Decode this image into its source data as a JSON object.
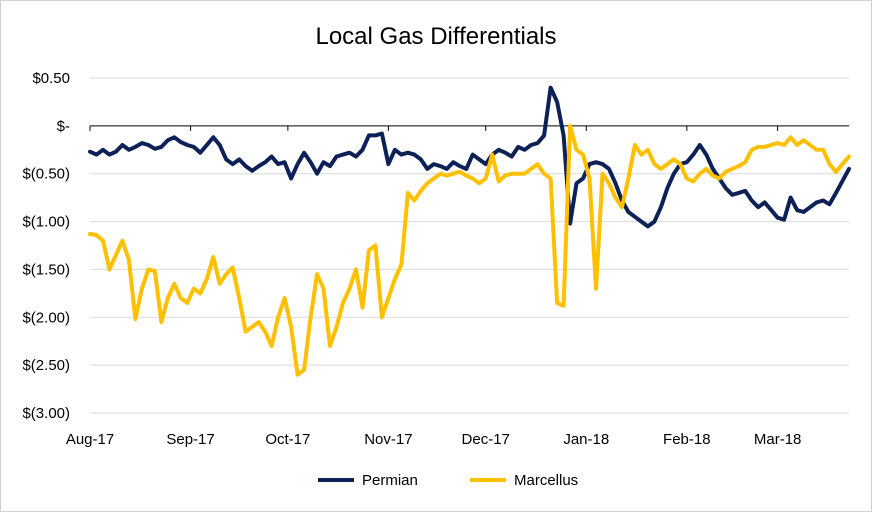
{
  "chart_data": {
    "type": "line",
    "title": "Local Gas Differentials",
    "xlabel": "",
    "ylabel": "",
    "ylim": [
      -3.0,
      0.5
    ],
    "y_ticks": [
      {
        "value": 0.5,
        "label": "$0.50"
      },
      {
        "value": 0.0,
        "label": "$-"
      },
      {
        "value": -0.5,
        "label": "$(0.50)"
      },
      {
        "value": -1.0,
        "label": "$(1.00)"
      },
      {
        "value": -1.5,
        "label": "$(1.50)"
      },
      {
        "value": -2.0,
        "label": "$(2.00)"
      },
      {
        "value": -2.5,
        "label": "$(2.50)"
      },
      {
        "value": -3.0,
        "label": "$(3.00)"
      }
    ],
    "xlim": [
      "2017-08-01",
      "2018-03-23"
    ],
    "x_ticks": [
      {
        "date": "2017-08-01",
        "label": "Aug-17"
      },
      {
        "date": "2017-09-01",
        "label": "Sep-17"
      },
      {
        "date": "2017-10-01",
        "label": "Oct-17"
      },
      {
        "date": "2017-11-01",
        "label": "Nov-17"
      },
      {
        "date": "2017-12-01",
        "label": "Dec-17"
      },
      {
        "date": "2018-01-01",
        "label": "Jan-18"
      },
      {
        "date": "2018-02-01",
        "label": "Feb-18"
      },
      {
        "date": "2018-03-01",
        "label": "Mar-18"
      }
    ],
    "grid": "horizontal",
    "legend_position": "bottom",
    "series": [
      {
        "name": "Permian",
        "color": "#0d2157",
        "points": [
          [
            "2017-08-01",
            -0.27
          ],
          [
            "2017-08-03",
            -0.3
          ],
          [
            "2017-08-05",
            -0.25
          ],
          [
            "2017-08-07",
            -0.3
          ],
          [
            "2017-08-09",
            -0.27
          ],
          [
            "2017-08-11",
            -0.2
          ],
          [
            "2017-08-13",
            -0.25
          ],
          [
            "2017-08-15",
            -0.22
          ],
          [
            "2017-08-17",
            -0.18
          ],
          [
            "2017-08-19",
            -0.2
          ],
          [
            "2017-08-21",
            -0.24
          ],
          [
            "2017-08-23",
            -0.22
          ],
          [
            "2017-08-25",
            -0.15
          ],
          [
            "2017-08-27",
            -0.12
          ],
          [
            "2017-08-29",
            -0.17
          ],
          [
            "2017-08-31",
            -0.2
          ],
          [
            "2017-09-02",
            -0.22
          ],
          [
            "2017-09-04",
            -0.28
          ],
          [
            "2017-09-06",
            -0.2
          ],
          [
            "2017-09-08",
            -0.12
          ],
          [
            "2017-09-10",
            -0.2
          ],
          [
            "2017-09-12",
            -0.35
          ],
          [
            "2017-09-14",
            -0.4
          ],
          [
            "2017-09-16",
            -0.35
          ],
          [
            "2017-09-18",
            -0.42
          ],
          [
            "2017-09-20",
            -0.47
          ],
          [
            "2017-09-22",
            -0.42
          ],
          [
            "2017-09-24",
            -0.38
          ],
          [
            "2017-09-26",
            -0.32
          ],
          [
            "2017-09-28",
            -0.4
          ],
          [
            "2017-09-30",
            -0.38
          ],
          [
            "2017-10-02",
            -0.55
          ],
          [
            "2017-10-04",
            -0.4
          ],
          [
            "2017-10-06",
            -0.28
          ],
          [
            "2017-10-08",
            -0.38
          ],
          [
            "2017-10-10",
            -0.5
          ],
          [
            "2017-10-12",
            -0.38
          ],
          [
            "2017-10-14",
            -0.42
          ],
          [
            "2017-10-16",
            -0.32
          ],
          [
            "2017-10-18",
            -0.3
          ],
          [
            "2017-10-20",
            -0.28
          ],
          [
            "2017-10-22",
            -0.32
          ],
          [
            "2017-10-24",
            -0.25
          ],
          [
            "2017-10-26",
            -0.1
          ],
          [
            "2017-10-28",
            -0.1
          ],
          [
            "2017-10-30",
            -0.08
          ],
          [
            "2017-11-01",
            -0.4
          ],
          [
            "2017-11-03",
            -0.25
          ],
          [
            "2017-11-05",
            -0.3
          ],
          [
            "2017-11-07",
            -0.28
          ],
          [
            "2017-11-09",
            -0.3
          ],
          [
            "2017-11-11",
            -0.35
          ],
          [
            "2017-11-13",
            -0.45
          ],
          [
            "2017-11-15",
            -0.4
          ],
          [
            "2017-11-17",
            -0.42
          ],
          [
            "2017-11-19",
            -0.45
          ],
          [
            "2017-11-21",
            -0.38
          ],
          [
            "2017-11-23",
            -0.42
          ],
          [
            "2017-11-25",
            -0.45
          ],
          [
            "2017-11-27",
            -0.3
          ],
          [
            "2017-11-29",
            -0.35
          ],
          [
            "2017-12-01",
            -0.4
          ],
          [
            "2017-12-03",
            -0.3
          ],
          [
            "2017-12-05",
            -0.25
          ],
          [
            "2017-12-07",
            -0.28
          ],
          [
            "2017-12-09",
            -0.32
          ],
          [
            "2017-12-11",
            -0.22
          ],
          [
            "2017-12-13",
            -0.25
          ],
          [
            "2017-12-15",
            -0.2
          ],
          [
            "2017-12-17",
            -0.18
          ],
          [
            "2017-12-19",
            -0.1
          ],
          [
            "2017-12-21",
            0.4
          ],
          [
            "2017-12-23",
            0.25
          ],
          [
            "2017-12-25",
            -0.1
          ],
          [
            "2017-12-27",
            -1.02
          ],
          [
            "2017-12-29",
            -0.6
          ],
          [
            "2017-12-31",
            -0.55
          ],
          [
            "2018-01-02",
            -0.4
          ],
          [
            "2018-01-04",
            -0.38
          ],
          [
            "2018-01-06",
            -0.4
          ],
          [
            "2018-01-08",
            -0.45
          ],
          [
            "2018-01-10",
            -0.6
          ],
          [
            "2018-01-12",
            -0.78
          ],
          [
            "2018-01-14",
            -0.9
          ],
          [
            "2018-01-16",
            -0.95
          ],
          [
            "2018-01-18",
            -1.0
          ],
          [
            "2018-01-20",
            -1.05
          ],
          [
            "2018-01-22",
            -1.0
          ],
          [
            "2018-01-24",
            -0.85
          ],
          [
            "2018-01-26",
            -0.65
          ],
          [
            "2018-01-28",
            -0.5
          ],
          [
            "2018-01-30",
            -0.4
          ],
          [
            "2018-02-01",
            -0.38
          ],
          [
            "2018-02-03",
            -0.3
          ],
          [
            "2018-02-05",
            -0.2
          ],
          [
            "2018-02-07",
            -0.3
          ],
          [
            "2018-02-09",
            -0.45
          ],
          [
            "2018-02-11",
            -0.55
          ],
          [
            "2018-02-13",
            -0.65
          ],
          [
            "2018-02-15",
            -0.72
          ],
          [
            "2018-02-17",
            -0.7
          ],
          [
            "2018-02-19",
            -0.68
          ],
          [
            "2018-02-21",
            -0.78
          ],
          [
            "2018-02-23",
            -0.85
          ],
          [
            "2018-02-25",
            -0.8
          ],
          [
            "2018-02-27",
            -0.88
          ],
          [
            "2018-03-01",
            -0.96
          ],
          [
            "2018-03-03",
            -0.98
          ],
          [
            "2018-03-05",
            -0.75
          ],
          [
            "2018-03-07",
            -0.88
          ],
          [
            "2018-03-09",
            -0.9
          ],
          [
            "2018-03-11",
            -0.85
          ],
          [
            "2018-03-13",
            -0.8
          ],
          [
            "2018-03-15",
            -0.78
          ],
          [
            "2018-03-17",
            -0.82
          ],
          [
            "2018-03-19",
            -0.7
          ],
          [
            "2018-03-23",
            -0.45
          ]
        ]
      },
      {
        "name": "Marcellus",
        "color": "#ffc000",
        "points": [
          [
            "2017-08-01",
            -1.13
          ],
          [
            "2017-08-03",
            -1.14
          ],
          [
            "2017-08-05",
            -1.2
          ],
          [
            "2017-08-07",
            -1.5
          ],
          [
            "2017-08-09",
            -1.35
          ],
          [
            "2017-08-11",
            -1.2
          ],
          [
            "2017-08-13",
            -1.4
          ],
          [
            "2017-08-15",
            -2.02
          ],
          [
            "2017-08-17",
            -1.7
          ],
          [
            "2017-08-19",
            -1.5
          ],
          [
            "2017-08-21",
            -1.52
          ],
          [
            "2017-08-23",
            -2.05
          ],
          [
            "2017-08-25",
            -1.8
          ],
          [
            "2017-08-27",
            -1.65
          ],
          [
            "2017-08-29",
            -1.8
          ],
          [
            "2017-08-31",
            -1.85
          ],
          [
            "2017-09-02",
            -1.7
          ],
          [
            "2017-09-04",
            -1.75
          ],
          [
            "2017-09-06",
            -1.6
          ],
          [
            "2017-09-08",
            -1.37
          ],
          [
            "2017-09-10",
            -1.65
          ],
          [
            "2017-09-12",
            -1.55
          ],
          [
            "2017-09-14",
            -1.48
          ],
          [
            "2017-09-16",
            -1.8
          ],
          [
            "2017-09-18",
            -2.15
          ],
          [
            "2017-09-20",
            -2.1
          ],
          [
            "2017-09-22",
            -2.05
          ],
          [
            "2017-09-24",
            -2.15
          ],
          [
            "2017-09-26",
            -2.3
          ],
          [
            "2017-09-28",
            -2.0
          ],
          [
            "2017-09-30",
            -1.8
          ],
          [
            "2017-10-02",
            -2.1
          ],
          [
            "2017-10-04",
            -2.6
          ],
          [
            "2017-10-06",
            -2.55
          ],
          [
            "2017-10-08",
            -2.0
          ],
          [
            "2017-10-10",
            -1.55
          ],
          [
            "2017-10-12",
            -1.7
          ],
          [
            "2017-10-14",
            -2.3
          ],
          [
            "2017-10-16",
            -2.1
          ],
          [
            "2017-10-18",
            -1.85
          ],
          [
            "2017-10-20",
            -1.7
          ],
          [
            "2017-10-22",
            -1.5
          ],
          [
            "2017-10-24",
            -1.9
          ],
          [
            "2017-10-26",
            -1.3
          ],
          [
            "2017-10-28",
            -1.25
          ],
          [
            "2017-10-30",
            -2.0
          ],
          [
            "2017-11-01",
            -1.8
          ],
          [
            "2017-11-03",
            -1.6
          ],
          [
            "2017-11-05",
            -1.45
          ],
          [
            "2017-11-07",
            -0.7
          ],
          [
            "2017-11-09",
            -0.78
          ],
          [
            "2017-11-11",
            -0.68
          ],
          [
            "2017-11-13",
            -0.6
          ],
          [
            "2017-11-15",
            -0.55
          ],
          [
            "2017-11-17",
            -0.5
          ],
          [
            "2017-11-19",
            -0.52
          ],
          [
            "2017-11-21",
            -0.5
          ],
          [
            "2017-11-23",
            -0.48
          ],
          [
            "2017-11-25",
            -0.52
          ],
          [
            "2017-11-27",
            -0.55
          ],
          [
            "2017-11-29",
            -0.6
          ],
          [
            "2017-12-01",
            -0.55
          ],
          [
            "2017-12-03",
            -0.3
          ],
          [
            "2017-12-05",
            -0.58
          ],
          [
            "2017-12-07",
            -0.52
          ],
          [
            "2017-12-09",
            -0.5
          ],
          [
            "2017-12-11",
            -0.5
          ],
          [
            "2017-12-13",
            -0.5
          ],
          [
            "2017-12-15",
            -0.45
          ],
          [
            "2017-12-17",
            -0.4
          ],
          [
            "2017-12-19",
            -0.5
          ],
          [
            "2017-12-21",
            -0.55
          ],
          [
            "2017-12-23",
            -1.85
          ],
          [
            "2017-12-25",
            -1.88
          ],
          [
            "2017-12-27",
            0.0
          ],
          [
            "2017-12-29",
            -0.25
          ],
          [
            "2017-12-31",
            -0.3
          ],
          [
            "2018-01-02",
            -0.55
          ],
          [
            "2018-01-04",
            -1.7
          ],
          [
            "2018-01-06",
            -0.5
          ],
          [
            "2018-01-08",
            -0.6
          ],
          [
            "2018-01-10",
            -0.75
          ],
          [
            "2018-01-12",
            -0.85
          ],
          [
            "2018-01-14",
            -0.55
          ],
          [
            "2018-01-16",
            -0.2
          ],
          [
            "2018-01-18",
            -0.3
          ],
          [
            "2018-01-20",
            -0.25
          ],
          [
            "2018-01-22",
            -0.4
          ],
          [
            "2018-01-24",
            -0.45
          ],
          [
            "2018-01-26",
            -0.4
          ],
          [
            "2018-01-28",
            -0.35
          ],
          [
            "2018-01-30",
            -0.4
          ],
          [
            "2018-02-01",
            -0.55
          ],
          [
            "2018-02-03",
            -0.58
          ],
          [
            "2018-02-05",
            -0.5
          ],
          [
            "2018-02-07",
            -0.45
          ],
          [
            "2018-02-09",
            -0.52
          ],
          [
            "2018-02-11",
            -0.55
          ],
          [
            "2018-02-13",
            -0.48
          ],
          [
            "2018-02-15",
            -0.45
          ],
          [
            "2018-02-17",
            -0.42
          ],
          [
            "2018-02-19",
            -0.38
          ],
          [
            "2018-02-21",
            -0.25
          ],
          [
            "2018-02-23",
            -0.22
          ],
          [
            "2018-02-25",
            -0.22
          ],
          [
            "2018-02-27",
            -0.2
          ],
          [
            "2018-03-01",
            -0.18
          ],
          [
            "2018-03-03",
            -0.2
          ],
          [
            "2018-03-05",
            -0.12
          ],
          [
            "2018-03-07",
            -0.2
          ],
          [
            "2018-03-09",
            -0.15
          ],
          [
            "2018-03-11",
            -0.2
          ],
          [
            "2018-03-13",
            -0.25
          ],
          [
            "2018-03-15",
            -0.25
          ],
          [
            "2018-03-17",
            -0.4
          ],
          [
            "2018-03-19",
            -0.48
          ],
          [
            "2018-03-21",
            -0.4
          ],
          [
            "2018-03-23",
            -0.32
          ]
        ]
      }
    ]
  }
}
